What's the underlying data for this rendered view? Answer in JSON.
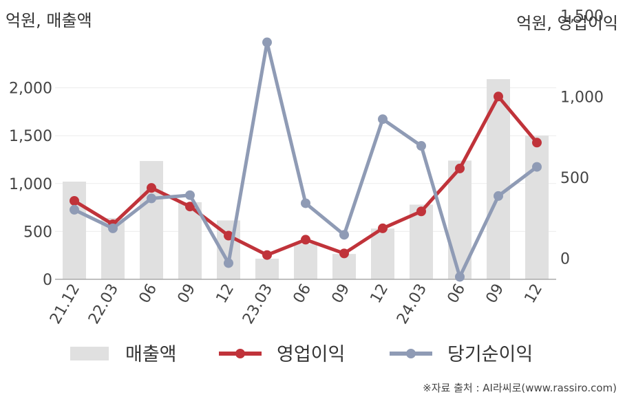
{
  "chart_data": {
    "type": "bar+line",
    "left_axis_label": "억원, 매출액",
    "right_axis_label": "억원, 영업이익",
    "left_ticks": [
      "0",
      "500",
      "1,000",
      "1,500",
      "2,000"
    ],
    "left_tick_values": [
      0,
      500,
      1000,
      1500,
      2000
    ],
    "left_ylim": [
      0,
      2500
    ],
    "right_ticks": [
      "0",
      "500",
      "1,000",
      "1,500"
    ],
    "right_tick_values": [
      0,
      500,
      1000,
      1500
    ],
    "right_ylim": [
      -130,
      1350
    ],
    "categories": [
      "21.12",
      "22.03",
      "06",
      "09",
      "12",
      "23.03",
      "06",
      "09",
      "12",
      "24.03",
      "06",
      "09",
      "12"
    ],
    "series": [
      {
        "name": "매출액",
        "type": "bar",
        "axis": "left",
        "color": "#e0e0e0",
        "values": [
          1020,
          640,
          1235,
          805,
          615,
          215,
          370,
          265,
          530,
          780,
          1240,
          2090,
          1500
        ]
      },
      {
        "name": "영업이익",
        "type": "line",
        "axis": "right",
        "color": "#c0333a",
        "values": [
          355,
          210,
          435,
          320,
          140,
          20,
          115,
          30,
          185,
          290,
          555,
          1000,
          715
        ]
      },
      {
        "name": "당기순이익",
        "type": "line",
        "axis": "right",
        "color": "#8f9bb5",
        "values": [
          300,
          185,
          370,
          390,
          -30,
          1335,
          340,
          145,
          860,
          695,
          -115,
          385,
          565
        ]
      }
    ],
    "legend_position": "bottom"
  },
  "source_text": "※자료 출처 : AI라씨로(www.rassiro.com)"
}
